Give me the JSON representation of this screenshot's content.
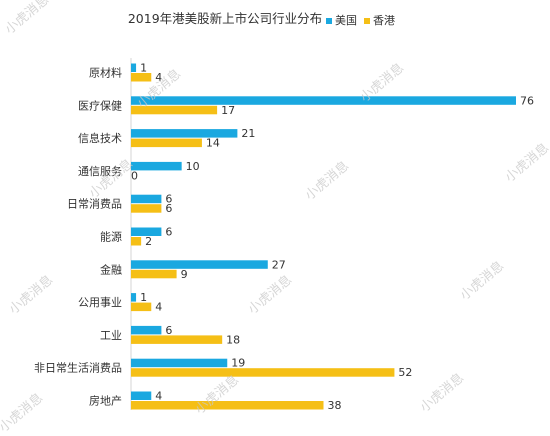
{
  "watermark": "小虎消息",
  "chart_data": {
    "type": "bar",
    "orientation": "horizontal",
    "title": "2019年港美股新上市公司行业分布",
    "categories": [
      "原材料",
      "医疗保健",
      "信息技术",
      "通信服务",
      "日常消费品",
      "能源",
      "金融",
      "公用事业",
      "工业",
      "非日常生活消费品",
      "房地产"
    ],
    "series": [
      {
        "name": "美国",
        "color": "#1aa8e0",
        "values": [
          1,
          76,
          21,
          10,
          6,
          6,
          27,
          1,
          6,
          19,
          4
        ]
      },
      {
        "name": "香港",
        "color": "#f5bf16",
        "values": [
          4,
          17,
          14,
          0,
          6,
          2,
          9,
          4,
          18,
          52,
          38
        ]
      }
    ],
    "xlim": [
      0,
      76
    ],
    "grid": false,
    "legend": "top"
  }
}
